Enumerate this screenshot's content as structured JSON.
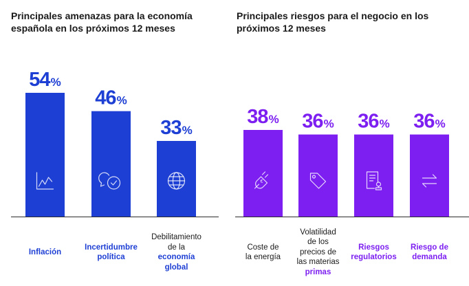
{
  "chart_data": [
    {
      "type": "bar",
      "title": "Principales amenazas para la economía española en los próximos 12 meses",
      "categories": [
        "Inflación",
        "Incertidumbre política",
        "Debilitamiento de la economía global"
      ],
      "values": [
        54,
        46,
        33
      ],
      "value_labels": [
        "54",
        "46",
        "33"
      ],
      "unit": "%",
      "icons": [
        "line-chart-icon",
        "speech-check-icon",
        "globe-icon"
      ],
      "color": "#1e3fd4",
      "ylim": [
        0,
        60
      ],
      "labels": [
        {
          "lines": [
            "Inflación"
          ],
          "highlight": []
        },
        {
          "lines": [
            "Incertidumbre",
            "política"
          ],
          "highlight": []
        },
        {
          "lines": [
            "Debilitamiento",
            "de la",
            "economía",
            "global"
          ],
          "highlight": [
            "economía",
            "global"
          ]
        }
      ]
    },
    {
      "type": "bar",
      "title": "Principales riesgos para el negocio en los próximos 12 meses",
      "categories": [
        "Coste de la energía",
        "Volatilidad de los precios de las materias primas",
        "Riesgos regulatorios",
        "Riesgo de demanda"
      ],
      "values": [
        38,
        36,
        36,
        36
      ],
      "value_labels": [
        "38",
        "36",
        "36",
        "36"
      ],
      "unit": "%",
      "icons": [
        "euro-plug-icon",
        "price-tag-icon",
        "document-stamp-icon",
        "exchange-arrows-icon"
      ],
      "color": "#7c1ff0",
      "ylim": [
        0,
        42
      ],
      "labels": [
        {
          "lines": [
            "Coste de",
            "la energía"
          ],
          "highlight": [
            "energía"
          ]
        },
        {
          "lines": [
            "Volatilidad",
            "de los",
            "precios de",
            "las materias",
            "primas"
          ],
          "highlight": [
            "materias",
            "primas"
          ]
        },
        {
          "lines": [
            "Riesgos",
            "regulatorios"
          ],
          "highlight": []
        },
        {
          "lines": [
            "Riesgo de",
            "demanda"
          ],
          "highlight": []
        }
      ]
    }
  ]
}
